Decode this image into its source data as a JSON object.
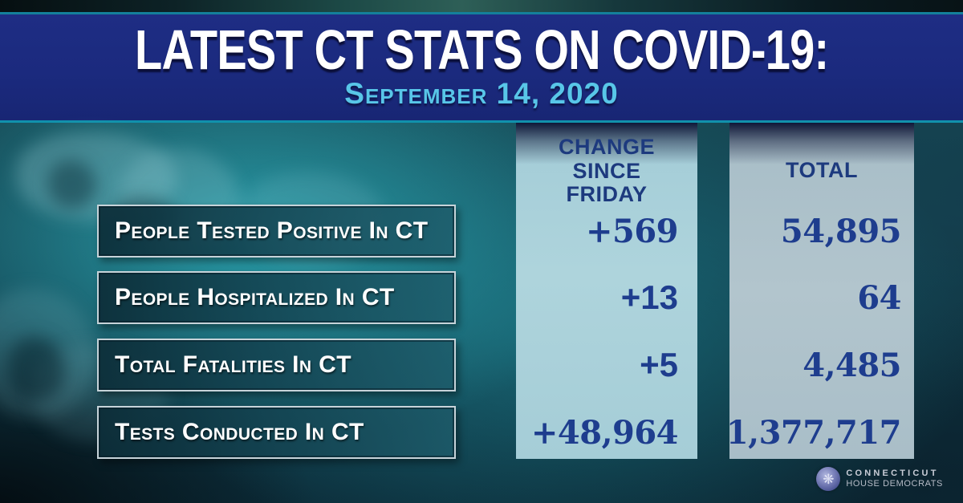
{
  "header": {
    "title": "LATEST CT STATS ON COVID-19:",
    "date": "September 14, 2020"
  },
  "table": {
    "change_header": "CHANGE\nSINCE\nFRIDAY",
    "total_header": "TOTAL",
    "rows": [
      {
        "label": "People Tested Positive In CT",
        "change": "+569",
        "total": "54,895"
      },
      {
        "label": "People Hospitalized In CT",
        "change": "+13",
        "total": "64"
      },
      {
        "label": "Total Fatalities In CT",
        "change": "+5",
        "total": "4,485"
      },
      {
        "label": "Tests Conducted In CT",
        "change": "+48,964",
        "total": "1,377,717"
      }
    ]
  },
  "footer": {
    "org_line1": "CONNECTICUT",
    "org_line2": "HOUSE DEMOCRATS",
    "seal_icon": "❋"
  },
  "colors": {
    "header_navy": "#1b2a7e",
    "accent_teal_line": "#1191ac",
    "subtitle_blue": "#58c6e8",
    "value_navy": "#1e3d8e",
    "background_teal": "#29a0ab",
    "change_column_bg": "#a8d0da",
    "total_column_bg": "#abc0ca",
    "label_box_border": "#c6d3d9",
    "label_text": "#ffffff"
  },
  "chart_data": {
    "type": "table",
    "title": "Latest CT Stats on COVID-19",
    "date": "September 14, 2020",
    "columns": [
      "Change Since Friday",
      "Total"
    ],
    "rows": [
      {
        "label": "People Tested Positive In CT",
        "change_since_friday": 569,
        "total": 54895
      },
      {
        "label": "People Hospitalized In CT",
        "change_since_friday": 13,
        "total": 64
      },
      {
        "label": "Total Fatalities In CT",
        "change_since_friday": 5,
        "total": 4485
      },
      {
        "label": "Tests Conducted In CT",
        "change_since_friday": 48964,
        "total": 1377717
      }
    ],
    "source": "Connecticut House Democrats"
  }
}
